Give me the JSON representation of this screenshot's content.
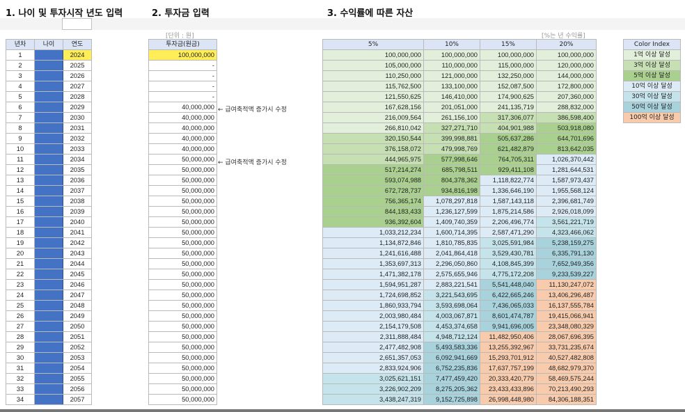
{
  "titles": {
    "t1": "1. 나이 및 투자시작 년도 입력",
    "t2": "2. 투자금 입력",
    "t3": "3. 수익률에 따른 자산"
  },
  "units": {
    "invest": "[단위 : 원]",
    "rate": "[%는 년 수익률]"
  },
  "left_headers": {
    "n": "년차",
    "age": "나이",
    "year": "연도"
  },
  "invest_header": "투자금(원금)",
  "notes": [
    "← 급여축적액 증가시 수정",
    "← 급여축적액 증가시 수정"
  ],
  "rate_headers": [
    "5%",
    "10%",
    "15%",
    "20%"
  ],
  "colors": {
    "c1": "#e2efda",
    "c3": "#c6e0b4",
    "c5": "#a9d08e",
    "c10": "#ddebf7",
    "c30": "#c5e3ea",
    "c50": "#a8d3dd",
    "c100": "#f8cbad"
  },
  "color_index": {
    "header": "Color Index",
    "items": [
      {
        "label": "1억 이상 달성",
        "color": "#e2efda"
      },
      {
        "label": "3억 이상 달성",
        "color": "#c6e0b4"
      },
      {
        "label": "5억 이상 달성",
        "color": "#a9d08e"
      },
      {
        "label": "10억 이상 달성",
        "color": "#ddebf7"
      },
      {
        "label": "30억 이상 달성",
        "color": "#c5e3ea"
      },
      {
        "label": "50억 이상 달성",
        "color": "#a8d3dd"
      },
      {
        "label": "100억 이상 달성",
        "color": "#f8cbad"
      }
    ]
  },
  "rows": [
    {
      "n": "1",
      "year": "2024",
      "inv": "100,000,000",
      "v": [
        "100,000,000",
        "100,000,000",
        "100,000,000",
        "100,000,000"
      ]
    },
    {
      "n": "2",
      "year": "2025",
      "inv": "-",
      "v": [
        "105,000,000",
        "110,000,000",
        "115,000,000",
        "120,000,000"
      ]
    },
    {
      "n": "3",
      "year": "2026",
      "inv": "-",
      "v": [
        "110,250,000",
        "121,000,000",
        "132,250,000",
        "144,000,000"
      ]
    },
    {
      "n": "4",
      "year": "2027",
      "inv": "-",
      "v": [
        "115,762,500",
        "133,100,000",
        "152,087,500",
        "172,800,000"
      ]
    },
    {
      "n": "5",
      "year": "2028",
      "inv": "-",
      "v": [
        "121,550,625",
        "146,410,000",
        "174,900,625",
        "207,360,000"
      ]
    },
    {
      "n": "6",
      "year": "2029",
      "inv": "40,000,000",
      "v": [
        "167,628,156",
        "201,051,000",
        "241,135,719",
        "288,832,000"
      ]
    },
    {
      "n": "7",
      "year": "2030",
      "inv": "40,000,000",
      "v": [
        "216,009,564",
        "261,156,100",
        "317,306,077",
        "386,598,400"
      ]
    },
    {
      "n": "8",
      "year": "2031",
      "inv": "40,000,000",
      "v": [
        "266,810,042",
        "327,271,710",
        "404,901,988",
        "503,918,080"
      ]
    },
    {
      "n": "9",
      "year": "2032",
      "inv": "40,000,000",
      "v": [
        "320,150,544",
        "399,998,881",
        "505,637,286",
        "644,701,696"
      ]
    },
    {
      "n": "10",
      "year": "2033",
      "inv": "40,000,000",
      "v": [
        "376,158,072",
        "479,998,769",
        "621,482,879",
        "813,642,035"
      ]
    },
    {
      "n": "11",
      "year": "2034",
      "inv": "50,000,000",
      "v": [
        "444,965,975",
        "577,998,646",
        "764,705,311",
        "1,026,370,442"
      ]
    },
    {
      "n": "12",
      "year": "2035",
      "inv": "50,000,000",
      "v": [
        "517,214,274",
        "685,798,511",
        "929,411,108",
        "1,281,644,531"
      ]
    },
    {
      "n": "13",
      "year": "2036",
      "inv": "50,000,000",
      "v": [
        "593,074,988",
        "804,378,362",
        "1,118,822,774",
        "1,587,973,437"
      ]
    },
    {
      "n": "14",
      "year": "2037",
      "inv": "50,000,000",
      "v": [
        "672,728,737",
        "934,816,198",
        "1,336,646,190",
        "1,955,568,124"
      ]
    },
    {
      "n": "15",
      "year": "2038",
      "inv": "50,000,000",
      "v": [
        "756,365,174",
        "1,078,297,818",
        "1,587,143,118",
        "2,396,681,749"
      ]
    },
    {
      "n": "16",
      "year": "2039",
      "inv": "50,000,000",
      "v": [
        "844,183,433",
        "1,236,127,599",
        "1,875,214,586",
        "2,926,018,099"
      ]
    },
    {
      "n": "17",
      "year": "2040",
      "inv": "50,000,000",
      "v": [
        "936,392,604",
        "1,409,740,359",
        "2,206,496,774",
        "3,561,221,719"
      ]
    },
    {
      "n": "18",
      "year": "2041",
      "inv": "50,000,000",
      "v": [
        "1,033,212,234",
        "1,600,714,395",
        "2,587,471,290",
        "4,323,466,062"
      ]
    },
    {
      "n": "19",
      "year": "2042",
      "inv": "50,000,000",
      "v": [
        "1,134,872,846",
        "1,810,785,835",
        "3,025,591,984",
        "5,238,159,275"
      ]
    },
    {
      "n": "20",
      "year": "2043",
      "inv": "50,000,000",
      "v": [
        "1,241,616,488",
        "2,041,864,418",
        "3,529,430,781",
        "6,335,791,130"
      ]
    },
    {
      "n": "21",
      "year": "2044",
      "inv": "50,000,000",
      "v": [
        "1,353,697,313",
        "2,296,050,860",
        "4,108,845,399",
        "7,652,949,356"
      ]
    },
    {
      "n": "22",
      "year": "2045",
      "inv": "50,000,000",
      "v": [
        "1,471,382,178",
        "2,575,655,946",
        "4,775,172,208",
        "9,233,539,227"
      ]
    },
    {
      "n": "23",
      "year": "2046",
      "inv": "50,000,000",
      "v": [
        "1,594,951,287",
        "2,883,221,541",
        "5,541,448,040",
        "11,130,247,072"
      ]
    },
    {
      "n": "24",
      "year": "2047",
      "inv": "50,000,000",
      "v": [
        "1,724,698,852",
        "3,221,543,695",
        "6,422,665,246",
        "13,406,296,487"
      ]
    },
    {
      "n": "25",
      "year": "2048",
      "inv": "50,000,000",
      "v": [
        "1,860,933,794",
        "3,593,698,064",
        "7,436,065,033",
        "16,137,555,784"
      ]
    },
    {
      "n": "26",
      "year": "2049",
      "inv": "50,000,000",
      "v": [
        "2,003,980,484",
        "4,003,067,871",
        "8,601,474,787",
        "19,415,066,941"
      ]
    },
    {
      "n": "27",
      "year": "2050",
      "inv": "50,000,000",
      "v": [
        "2,154,179,508",
        "4,453,374,658",
        "9,941,696,005",
        "23,348,080,329"
      ]
    },
    {
      "n": "28",
      "year": "2051",
      "inv": "50,000,000",
      "v": [
        "2,311,888,484",
        "4,948,712,124",
        "11,482,950,406",
        "28,067,696,395"
      ]
    },
    {
      "n": "29",
      "year": "2052",
      "inv": "50,000,000",
      "v": [
        "2,477,482,908",
        "5,493,583,336",
        "13,255,392,967",
        "33,731,235,674"
      ]
    },
    {
      "n": "30",
      "year": "2053",
      "inv": "50,000,000",
      "v": [
        "2,651,357,053",
        "6,092,941,669",
        "15,293,701,912",
        "40,527,482,808"
      ]
    },
    {
      "n": "31",
      "year": "2054",
      "inv": "50,000,000",
      "v": [
        "2,833,924,906",
        "6,752,235,836",
        "17,637,757,199",
        "48,682,979,370"
      ]
    },
    {
      "n": "32",
      "year": "2055",
      "inv": "50,000,000",
      "v": [
        "3,025,621,151",
        "7,477,459,420",
        "20,333,420,779",
        "58,469,575,244"
      ]
    },
    {
      "n": "33",
      "year": "2056",
      "inv": "50,000,000",
      "v": [
        "3,226,902,209",
        "8,275,205,362",
        "23,433,433,896",
        "70,213,490,293"
      ]
    },
    {
      "n": "34",
      "year": "2057",
      "inv": "50,000,000",
      "v": [
        "3,438,247,319",
        "9,152,725,898",
        "26,998,448,980",
        "84,306,188,351"
      ]
    }
  ]
}
